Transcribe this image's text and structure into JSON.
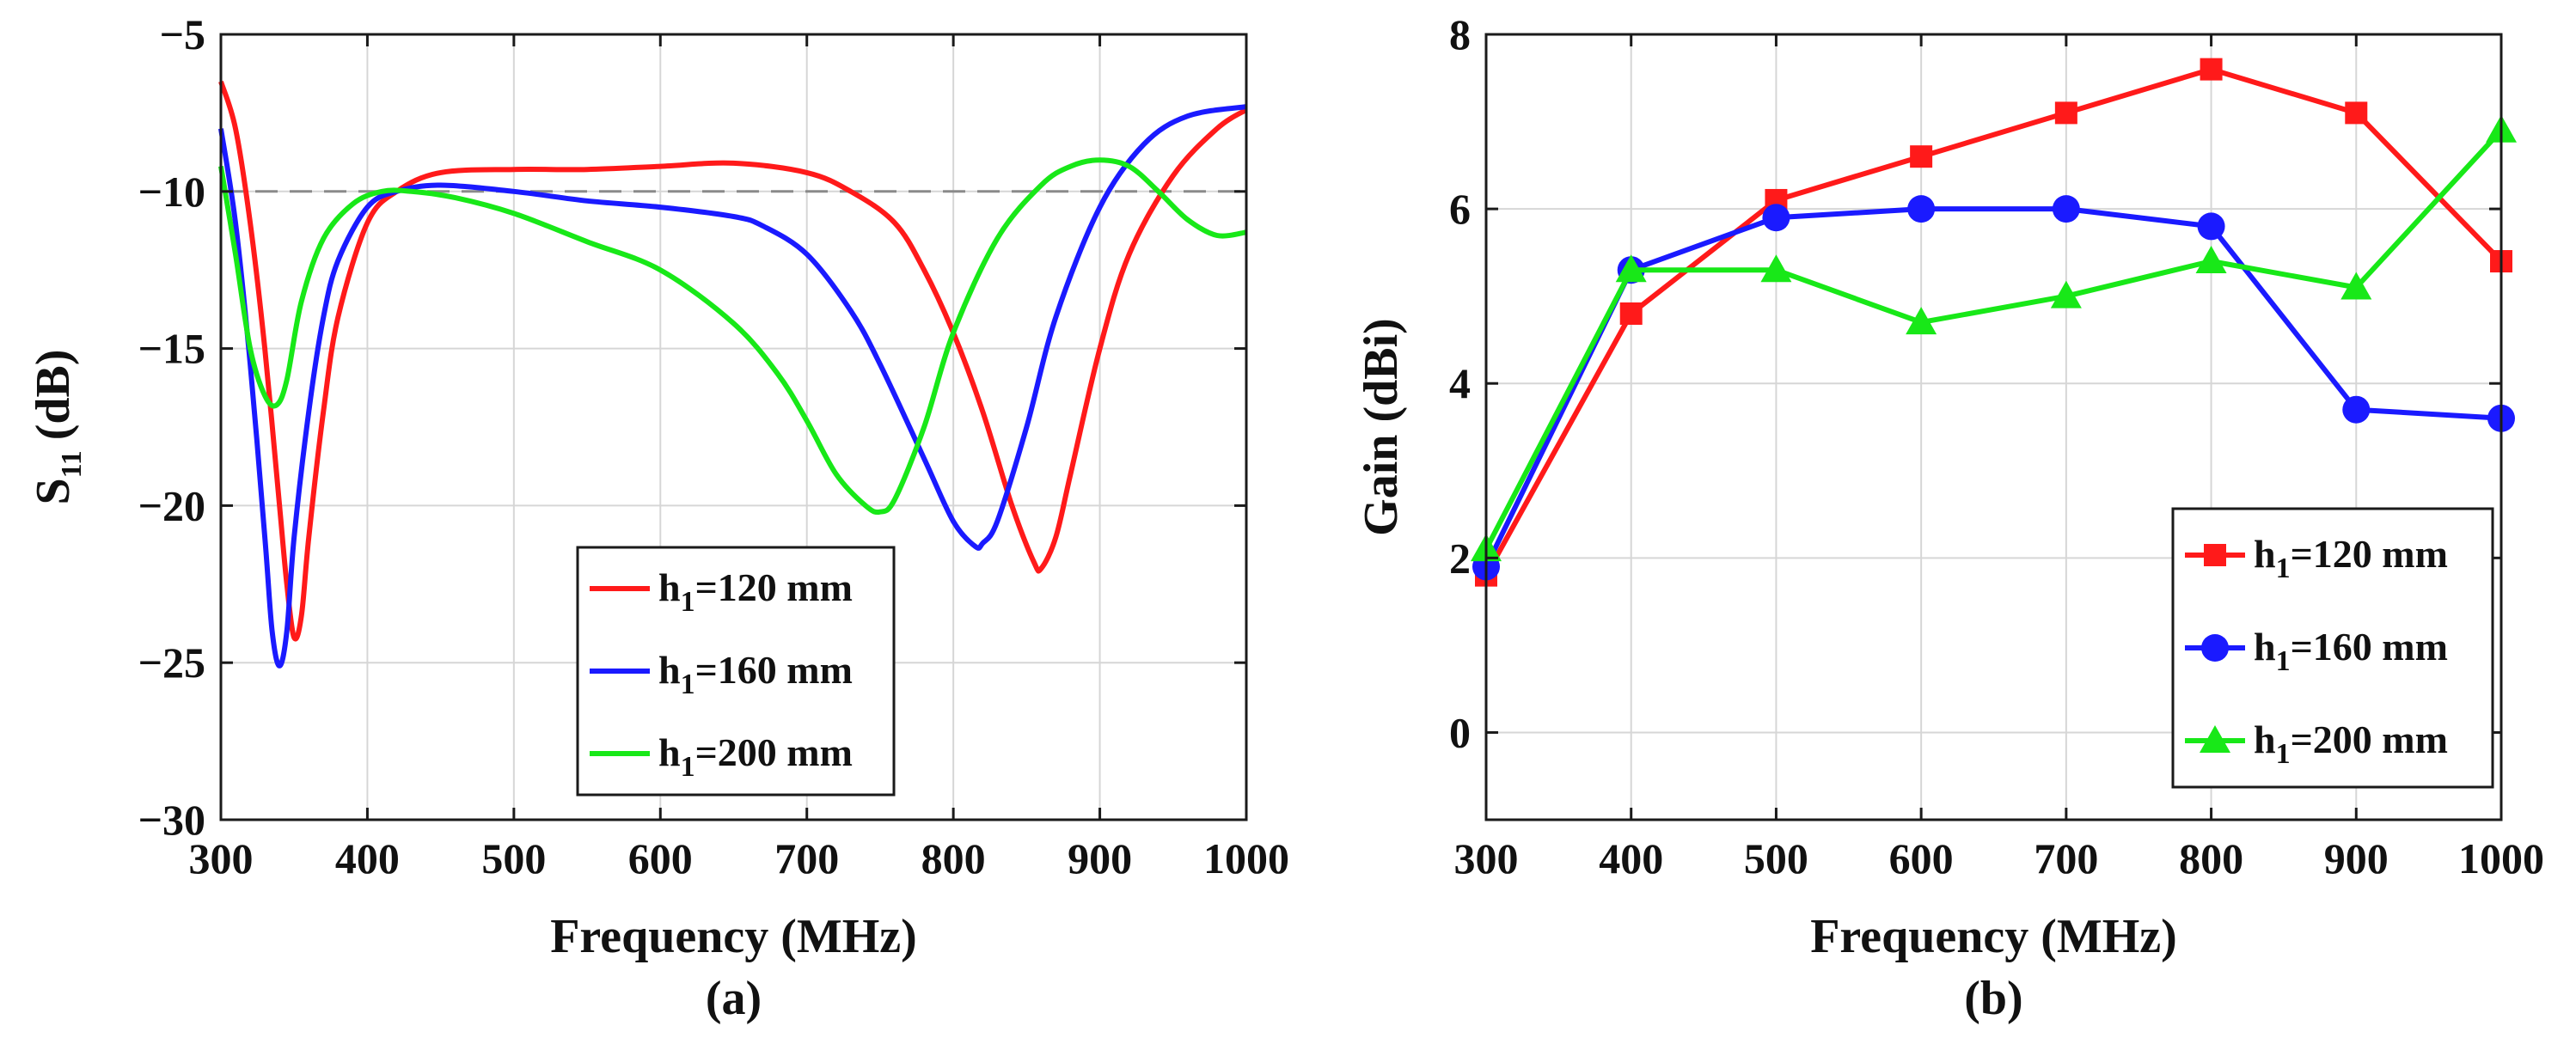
{
  "chart_data": [
    {
      "type": "line",
      "panel": "a",
      "caption": "(a)",
      "title": "",
      "xlabel": "Frequency (MHz)",
      "ylabel": "S",
      "ylabel_sub": "11",
      "ylabel_unit": "(dB)",
      "xlim": [
        300,
        1000
      ],
      "ylim": [
        -30,
        -5
      ],
      "xticks": [
        300,
        400,
        500,
        600,
        700,
        800,
        900,
        1000
      ],
      "yticks": [
        -30,
        -25,
        -20,
        -15,
        -10,
        -5
      ],
      "xtick_labels": [
        "300",
        "400",
        "500",
        "600",
        "700",
        "800",
        "900",
        "1000"
      ],
      "ytick_labels": [
        "−30",
        "−25",
        "−20",
        "−15",
        "−10",
        "−5"
      ],
      "grid": true,
      "reference_line": {
        "y": -10,
        "style": "dashed",
        "color": "#8a8a8a"
      },
      "legend_position": "bottom-right",
      "series": [
        {
          "name": "h1=120 mm",
          "label_main": "h",
          "label_sub": "1",
          "label_rest": "=120 mm",
          "color": "#ff1a1a",
          "x": [
            300,
            310,
            320,
            330,
            340,
            345,
            350,
            355,
            360,
            370,
            380,
            400,
            420,
            450,
            500,
            550,
            600,
            650,
            700,
            730,
            760,
            780,
            800,
            820,
            840,
            855,
            860,
            870,
            880,
            900,
            920,
            950,
            980,
            1000
          ],
          "y": [
            -6.5,
            -8,
            -11,
            -15,
            -20,
            -22.5,
            -24.2,
            -23.5,
            -21,
            -17,
            -14,
            -11,
            -10,
            -9.4,
            -9.3,
            -9.3,
            -9.2,
            -9.1,
            -9.4,
            -10,
            -11,
            -12.5,
            -14.5,
            -17,
            -20,
            -21.8,
            -22,
            -21,
            -19,
            -15,
            -12,
            -9.5,
            -8,
            -7.4
          ]
        },
        {
          "name": "h1=160 mm",
          "label_main": "h",
          "label_sub": "1",
          "label_rest": "=160 mm",
          "color": "#1a1aff",
          "x": [
            300,
            310,
            320,
            330,
            335,
            340,
            345,
            350,
            360,
            370,
            380,
            400,
            420,
            450,
            500,
            550,
            600,
            650,
            670,
            700,
            730,
            750,
            780,
            800,
            815,
            820,
            830,
            850,
            870,
            900,
            930,
            960,
            1000
          ],
          "y": [
            -8,
            -11,
            -15.5,
            -21,
            -24,
            -25.1,
            -24,
            -21,
            -17,
            -14,
            -12.2,
            -10.5,
            -10,
            -9.8,
            -10,
            -10.3,
            -10.5,
            -10.8,
            -11.1,
            -12,
            -13.8,
            -15.5,
            -18.5,
            -20.5,
            -21.3,
            -21.2,
            -20.5,
            -17.5,
            -14,
            -10.5,
            -8.5,
            -7.6,
            -7.3
          ]
        },
        {
          "name": "h1=200 mm",
          "label_main": "h",
          "label_sub": "1",
          "label_rest": "=200 mm",
          "color": "#18e818",
          "x": [
            300,
            310,
            320,
            330,
            338,
            345,
            355,
            370,
            390,
            410,
            430,
            460,
            500,
            550,
            600,
            650,
            680,
            700,
            720,
            740,
            750,
            760,
            780,
            800,
            830,
            860,
            880,
            900,
            920,
            940,
            960,
            980,
            1000
          ],
          "y": [
            -9.2,
            -12,
            -15,
            -16.5,
            -16.8,
            -16,
            -13.5,
            -11.5,
            -10.4,
            -10,
            -10,
            -10.2,
            -10.7,
            -11.6,
            -12.5,
            -14.2,
            -15.8,
            -17.3,
            -19,
            -20,
            -20.2,
            -19.8,
            -17.5,
            -14.5,
            -11.5,
            -9.8,
            -9.2,
            -9,
            -9.2,
            -10,
            -10.9,
            -11.4,
            -11.3
          ]
        }
      ]
    },
    {
      "type": "line",
      "panel": "b",
      "caption": "(b)",
      "title": "",
      "xlabel": "Frequency (MHz)",
      "ylabel": "Gain (dBi)",
      "xlim": [
        300,
        1000
      ],
      "ylim": [
        -1,
        8
      ],
      "xticks": [
        300,
        400,
        500,
        600,
        700,
        800,
        900,
        1000
      ],
      "yticks": [
        0,
        2,
        4,
        6,
        8
      ],
      "xtick_labels": [
        "300",
        "400",
        "500",
        "600",
        "700",
        "800",
        "900",
        "1000"
      ],
      "ytick_labels": [
        "0",
        "2",
        "4",
        "6",
        "8"
      ],
      "grid": true,
      "legend_position": "bottom-right",
      "series": [
        {
          "name": "h1=120 mm",
          "label_main": "h",
          "label_sub": "1",
          "label_rest": "=120 mm",
          "color": "#ff1a1a",
          "marker": "square",
          "x": [
            300,
            400,
            500,
            600,
            700,
            800,
            900,
            1000
          ],
          "y": [
            1.8,
            4.8,
            6.1,
            6.6,
            7.1,
            7.6,
            7.1,
            5.4
          ]
        },
        {
          "name": "h1=160 mm",
          "label_main": "h",
          "label_sub": "1",
          "label_rest": "=160 mm",
          "color": "#1a1aff",
          "marker": "circle",
          "x": [
            300,
            400,
            500,
            600,
            700,
            800,
            900,
            1000
          ],
          "y": [
            1.9,
            5.3,
            5.9,
            6.0,
            6.0,
            5.8,
            3.7,
            3.6
          ]
        },
        {
          "name": "h1=200 mm",
          "label_main": "h",
          "label_sub": "1",
          "label_rest": "=200 mm",
          "color": "#18e818",
          "marker": "triangle",
          "x": [
            300,
            400,
            500,
            600,
            700,
            800,
            900,
            1000
          ],
          "y": [
            2.1,
            5.3,
            5.3,
            4.7,
            5.0,
            5.4,
            5.1,
            6.9
          ]
        }
      ]
    }
  ]
}
